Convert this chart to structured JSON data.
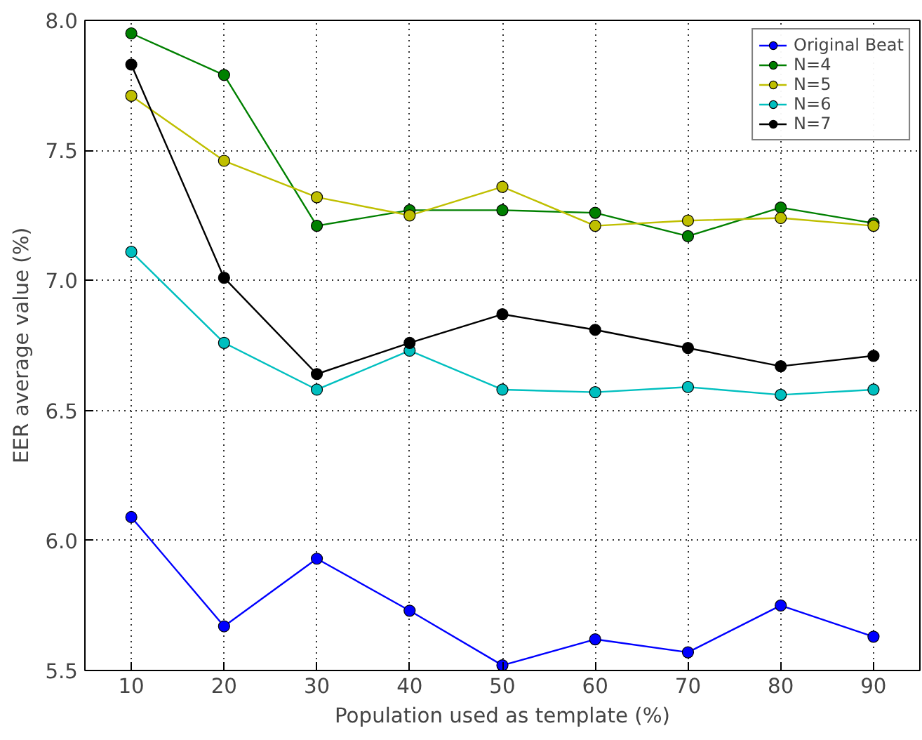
{
  "chart_data": {
    "type": "line",
    "xlabel": "Population used as template (%)",
    "ylabel": "EER average value (%)",
    "x": [
      10,
      20,
      30,
      40,
      50,
      60,
      70,
      80,
      90
    ],
    "series": [
      {
        "name": "Original Beat",
        "color": "#0000ff",
        "values": [
          6.09,
          5.67,
          5.93,
          5.73,
          5.52,
          5.62,
          5.57,
          5.75,
          5.63
        ]
      },
      {
        "name": "N=4",
        "color": "#008000",
        "values": [
          7.95,
          7.79,
          7.21,
          7.27,
          7.27,
          7.26,
          7.17,
          7.28,
          7.22
        ]
      },
      {
        "name": "N=5",
        "color": "#bfbf00",
        "values": [
          7.71,
          7.46,
          7.32,
          7.25,
          7.36,
          7.21,
          7.23,
          7.24,
          7.21
        ]
      },
      {
        "name": "N=6",
        "color": "#00bfbf",
        "values": [
          7.11,
          6.76,
          6.58,
          6.73,
          6.58,
          6.57,
          6.59,
          6.56,
          6.58
        ]
      },
      {
        "name": "N=7",
        "color": "#000000",
        "values": [
          7.83,
          7.01,
          6.64,
          6.76,
          6.87,
          6.81,
          6.74,
          6.67,
          6.71
        ]
      }
    ],
    "xlim": [
      5,
      95
    ],
    "ylim": [
      5.5,
      8.0
    ],
    "xticks": [
      10,
      20,
      30,
      40,
      50,
      60,
      70,
      80,
      90
    ],
    "yticks": [
      {
        "value": 5.5,
        "label": "5.5"
      },
      {
        "value": 6.0,
        "label": "6.0"
      },
      {
        "value": 6.5,
        "label": "6.5"
      },
      {
        "value": 7.0,
        "label": "7.0"
      },
      {
        "value": 7.5,
        "label": "7.5"
      },
      {
        "value": 8.0,
        "label": "8.0"
      }
    ],
    "grid": true,
    "legend": "top right",
    "marker": "circle",
    "line_style": "solid"
  }
}
